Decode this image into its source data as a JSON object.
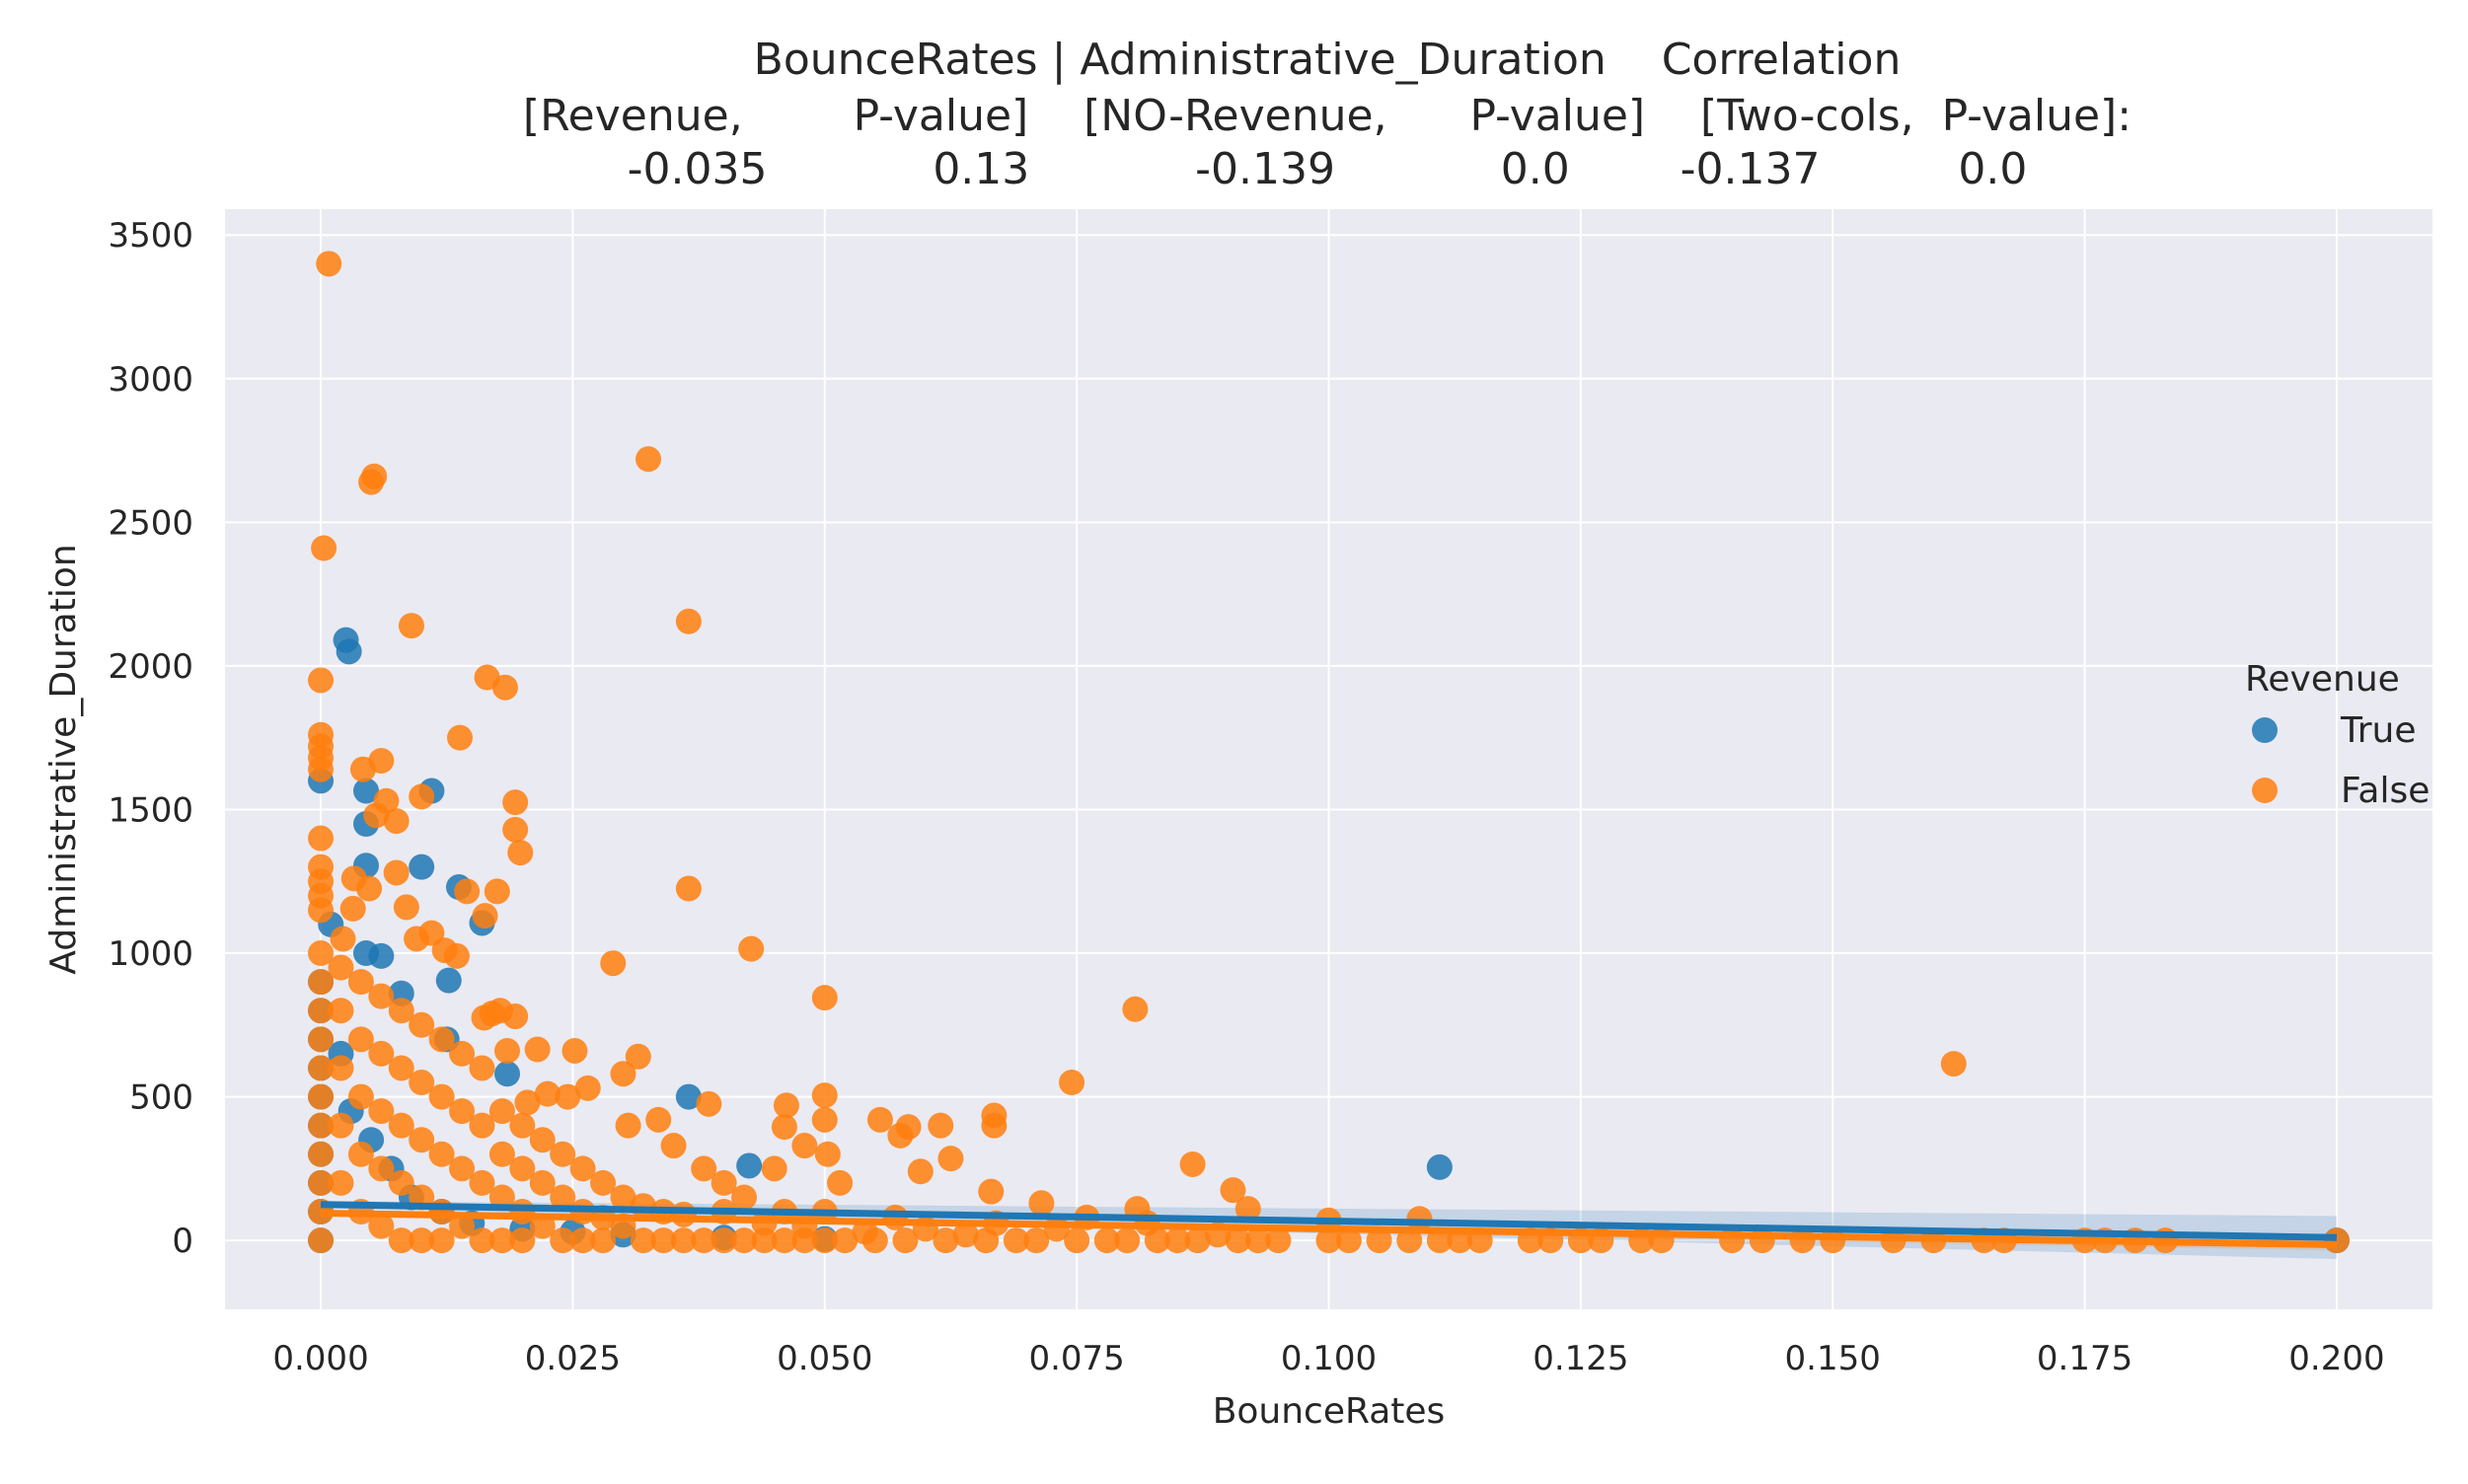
{
  "chart_data": {
    "type": "scatter",
    "title_lines": [
      "BounceRates | Administrative_Duration    Correlation",
      "[Revenue,        P-value]    [NO-Revenue,      P-value]    [Two-cols,  P-value]:",
      "-0.035            0.13            -0.139            0.0        -0.137          0.0"
    ],
    "xlabel": "BounceRates",
    "ylabel": "Administrative_Duration",
    "xlim": [
      -0.0095,
      0.2095
    ],
    "ylim": [
      -240,
      3590
    ],
    "xticks": [
      0.0,
      0.025,
      0.05,
      0.075,
      0.1,
      0.125,
      0.15,
      0.175,
      0.2
    ],
    "xtick_labels": [
      "0.000",
      "0.025",
      "0.050",
      "0.075",
      "0.100",
      "0.125",
      "0.150",
      "0.175",
      "0.200"
    ],
    "yticks": [
      0,
      500,
      1000,
      1500,
      2000,
      2500,
      3000,
      3500
    ],
    "ytick_labels": [
      "0",
      "500",
      "1000",
      "1500",
      "2000",
      "2500",
      "3000",
      "3500"
    ],
    "grid": true,
    "legend": {
      "title": "Revenue",
      "placement": "right",
      "entries": [
        {
          "label": "True",
          "color": "#1f77b4"
        },
        {
          "label": "False",
          "color": "#ff7f0e"
        }
      ]
    },
    "series": [
      {
        "name": "True",
        "color": "#1f77b4",
        "points": [
          [
            0.0025,
            2090
          ],
          [
            0.0028,
            2050
          ],
          [
            0.0,
            1600
          ],
          [
            0.0045,
            1565
          ],
          [
            0.011,
            1565
          ],
          [
            0.0045,
            1450
          ],
          [
            0.0045,
            1305
          ],
          [
            0.01,
            1300
          ],
          [
            0.0137,
            1230
          ],
          [
            0.016,
            1105
          ],
          [
            0.001,
            1100
          ],
          [
            0.0045,
            1000
          ],
          [
            0.006,
            990
          ],
          [
            0.0127,
            905
          ],
          [
            0.008,
            860
          ],
          [
            0.0125,
            700
          ],
          [
            0.0185,
            580
          ],
          [
            0.0365,
            500
          ],
          [
            0.0425,
            260
          ],
          [
            0.111,
            255
          ],
          [
            0.0,
            900
          ],
          [
            0.0,
            800
          ],
          [
            0.0,
            700
          ],
          [
            0.0,
            600
          ],
          [
            0.0,
            500
          ],
          [
            0.0,
            400
          ],
          [
            0.0,
            300
          ],
          [
            0.0,
            200
          ],
          [
            0.0,
            100
          ],
          [
            0.0,
            0
          ],
          [
            0.002,
            650
          ],
          [
            0.003,
            450
          ],
          [
            0.005,
            350
          ],
          [
            0.007,
            250
          ],
          [
            0.009,
            150
          ],
          [
            0.012,
            100
          ],
          [
            0.015,
            60
          ],
          [
            0.02,
            40
          ],
          [
            0.025,
            30
          ],
          [
            0.03,
            20
          ],
          [
            0.04,
            10
          ],
          [
            0.05,
            5
          ],
          [
            0.2,
            0
          ]
        ]
      },
      {
        "name": "False",
        "color": "#ff7f0e",
        "points": [
          [
            0.0008,
            3400
          ],
          [
            0.0325,
            2720
          ],
          [
            0.0053,
            2660
          ],
          [
            0.005,
            2640
          ],
          [
            0.0003,
            2410
          ],
          [
            0.0365,
            2155
          ],
          [
            0.009,
            2140
          ],
          [
            0.0165,
            1960
          ],
          [
            0.0183,
            1925
          ],
          [
            0.0,
            1950
          ],
          [
            0.0,
            1760
          ],
          [
            0.0,
            1720
          ],
          [
            0.0,
            1680
          ],
          [
            0.0,
            1640
          ],
          [
            0.0138,
            1750
          ],
          [
            0.006,
            1670
          ],
          [
            0.0042,
            1640
          ],
          [
            0.0193,
            1525
          ],
          [
            0.01,
            1545
          ],
          [
            0.0065,
            1530
          ],
          [
            0.0055,
            1480
          ],
          [
            0.0075,
            1460
          ],
          [
            0.0193,
            1430
          ],
          [
            0.0198,
            1350
          ],
          [
            0.0,
            1400
          ],
          [
            0.0,
            1300
          ],
          [
            0.0,
            1250
          ],
          [
            0.0,
            1200
          ],
          [
            0.0,
            1150
          ],
          [
            0.0033,
            1260
          ],
          [
            0.0075,
            1280
          ],
          [
            0.0048,
            1225
          ],
          [
            0.0145,
            1215
          ],
          [
            0.0175,
            1215
          ],
          [
            0.0365,
            1225
          ],
          [
            0.0032,
            1155
          ],
          [
            0.0085,
            1160
          ],
          [
            0.0163,
            1130
          ],
          [
            0.0022,
            1050
          ],
          [
            0.0095,
            1050
          ],
          [
            0.011,
            1070
          ],
          [
            0.0123,
            1010
          ],
          [
            0.0135,
            990
          ],
          [
            0.0427,
            1015
          ],
          [
            0.029,
            965
          ],
          [
            0.05,
            845
          ],
          [
            0.0808,
            805
          ],
          [
            0.0162,
            775
          ],
          [
            0.017,
            790
          ],
          [
            0.0178,
            800
          ],
          [
            0.0193,
            780
          ],
          [
            0.0185,
            660
          ],
          [
            0.0215,
            665
          ],
          [
            0.0252,
            660
          ],
          [
            0.0315,
            640
          ],
          [
            0.162,
            615
          ],
          [
            0.0745,
            550
          ],
          [
            0.0668,
            435
          ],
          [
            0.0668,
            400
          ],
          [
            0.0615,
            400
          ],
          [
            0.0583,
            395
          ],
          [
            0.0555,
            420
          ],
          [
            0.0575,
            365
          ],
          [
            0.0462,
            470
          ],
          [
            0.05,
            505
          ],
          [
            0.0385,
            475
          ],
          [
            0.05,
            420
          ],
          [
            0.046,
            395
          ],
          [
            0.048,
            330
          ],
          [
            0.0503,
            300
          ],
          [
            0.0515,
            200
          ],
          [
            0.0595,
            240
          ],
          [
            0.0625,
            285
          ],
          [
            0.0665,
            170
          ],
          [
            0.0715,
            130
          ],
          [
            0.0865,
            265
          ],
          [
            0.0905,
            175
          ],
          [
            0.092,
            110
          ],
          [
            0.081,
            110
          ],
          [
            0.1,
            70
          ],
          [
            0.109,
            75
          ],
          [
            0.0265,
            530
          ],
          [
            0.0245,
            500
          ],
          [
            0.0225,
            510
          ],
          [
            0.0205,
            480
          ],
          [
            0.03,
            580
          ],
          [
            0.0305,
            400
          ],
          [
            0.0335,
            420
          ],
          [
            0.035,
            330
          ],
          [
            0.045,
            250
          ],
          [
            0.04,
            200
          ],
          [
            0.0,
            1000
          ],
          [
            0.0,
            900
          ],
          [
            0.0,
            800
          ],
          [
            0.0,
            700
          ],
          [
            0.0,
            600
          ],
          [
            0.0,
            500
          ],
          [
            0.0,
            400
          ],
          [
            0.0,
            300
          ],
          [
            0.0,
            200
          ],
          [
            0.0,
            100
          ],
          [
            0.0,
            0
          ],
          [
            0.002,
            950
          ],
          [
            0.002,
            800
          ],
          [
            0.002,
            600
          ],
          [
            0.002,
            400
          ],
          [
            0.002,
            200
          ],
          [
            0.004,
            900
          ],
          [
            0.004,
            700
          ],
          [
            0.004,
            500
          ],
          [
            0.004,
            300
          ],
          [
            0.004,
            100
          ],
          [
            0.006,
            850
          ],
          [
            0.006,
            650
          ],
          [
            0.006,
            450
          ],
          [
            0.006,
            250
          ],
          [
            0.006,
            50
          ],
          [
            0.008,
            800
          ],
          [
            0.008,
            600
          ],
          [
            0.008,
            400
          ],
          [
            0.008,
            200
          ],
          [
            0.008,
            0
          ],
          [
            0.01,
            750
          ],
          [
            0.01,
            550
          ],
          [
            0.01,
            350
          ],
          [
            0.01,
            150
          ],
          [
            0.01,
            0
          ],
          [
            0.012,
            700
          ],
          [
            0.012,
            500
          ],
          [
            0.012,
            300
          ],
          [
            0.012,
            100
          ],
          [
            0.012,
            0
          ],
          [
            0.014,
            650
          ],
          [
            0.014,
            450
          ],
          [
            0.014,
            250
          ],
          [
            0.014,
            50
          ],
          [
            0.016,
            600
          ],
          [
            0.016,
            400
          ],
          [
            0.016,
            200
          ],
          [
            0.016,
            0
          ],
          [
            0.018,
            450
          ],
          [
            0.018,
            300
          ],
          [
            0.018,
            150
          ],
          [
            0.018,
            0
          ],
          [
            0.02,
            400
          ],
          [
            0.02,
            250
          ],
          [
            0.02,
            100
          ],
          [
            0.02,
            0
          ],
          [
            0.022,
            350
          ],
          [
            0.022,
            200
          ],
          [
            0.022,
            50
          ],
          [
            0.024,
            300
          ],
          [
            0.024,
            150
          ],
          [
            0.024,
            0
          ],
          [
            0.026,
            250
          ],
          [
            0.026,
            100
          ],
          [
            0.026,
            0
          ],
          [
            0.028,
            200
          ],
          [
            0.028,
            80
          ],
          [
            0.028,
            0
          ],
          [
            0.03,
            150
          ],
          [
            0.03,
            50
          ],
          [
            0.032,
            120
          ],
          [
            0.032,
            0
          ],
          [
            0.034,
            100
          ],
          [
            0.034,
            0
          ],
          [
            0.036,
            90
          ],
          [
            0.036,
            0
          ],
          [
            0.038,
            250
          ],
          [
            0.038,
            0
          ],
          [
            0.04,
            100
          ],
          [
            0.04,
            0
          ],
          [
            0.042,
            150
          ],
          [
            0.042,
            0
          ],
          [
            0.044,
            60
          ],
          [
            0.044,
            0
          ],
          [
            0.046,
            100
          ],
          [
            0.046,
            0
          ],
          [
            0.048,
            50
          ],
          [
            0.048,
            0
          ],
          [
            0.05,
            100
          ],
          [
            0.05,
            0
          ],
          [
            0.052,
            0
          ],
          [
            0.054,
            30
          ],
          [
            0.055,
            0
          ],
          [
            0.057,
            80
          ],
          [
            0.058,
            0
          ],
          [
            0.06,
            40
          ],
          [
            0.062,
            0
          ],
          [
            0.064,
            20
          ],
          [
            0.066,
            0
          ],
          [
            0.067,
            60
          ],
          [
            0.069,
            0
          ],
          [
            0.071,
            0
          ],
          [
            0.073,
            40
          ],
          [
            0.075,
            0
          ],
          [
            0.076,
            80
          ],
          [
            0.078,
            0
          ],
          [
            0.08,
            0
          ],
          [
            0.082,
            60
          ],
          [
            0.083,
            0
          ],
          [
            0.085,
            0
          ],
          [
            0.087,
            0
          ],
          [
            0.089,
            20
          ],
          [
            0.091,
            0
          ],
          [
            0.093,
            0
          ],
          [
            0.095,
            0
          ],
          [
            0.1,
            0
          ],
          [
            0.102,
            0
          ],
          [
            0.105,
            0
          ],
          [
            0.108,
            0
          ],
          [
            0.111,
            0
          ],
          [
            0.113,
            0
          ],
          [
            0.115,
            0
          ],
          [
            0.12,
            0
          ],
          [
            0.122,
            0
          ],
          [
            0.125,
            0
          ],
          [
            0.127,
            0
          ],
          [
            0.131,
            0
          ],
          [
            0.133,
            0
          ],
          [
            0.14,
            0
          ],
          [
            0.143,
            0
          ],
          [
            0.147,
            0
          ],
          [
            0.15,
            0
          ],
          [
            0.156,
            0
          ],
          [
            0.16,
            0
          ],
          [
            0.165,
            0
          ],
          [
            0.167,
            0
          ],
          [
            0.175,
            0
          ],
          [
            0.177,
            0
          ],
          [
            0.18,
            0
          ],
          [
            0.183,
            0
          ],
          [
            0.2,
            0
          ]
        ]
      }
    ],
    "regression": [
      {
        "name": "True",
        "color": "#1f77b4",
        "x": [
          0.0,
          0.2
        ],
        "y": [
          125,
          10
        ],
        "ci_half_width": [
          12,
          75
        ]
      },
      {
        "name": "False",
        "color": "#ff7f0e",
        "x": [
          0.0,
          0.2
        ],
        "y": [
          95,
          -15
        ],
        "ci_half_width": [
          6,
          20
        ]
      }
    ]
  }
}
